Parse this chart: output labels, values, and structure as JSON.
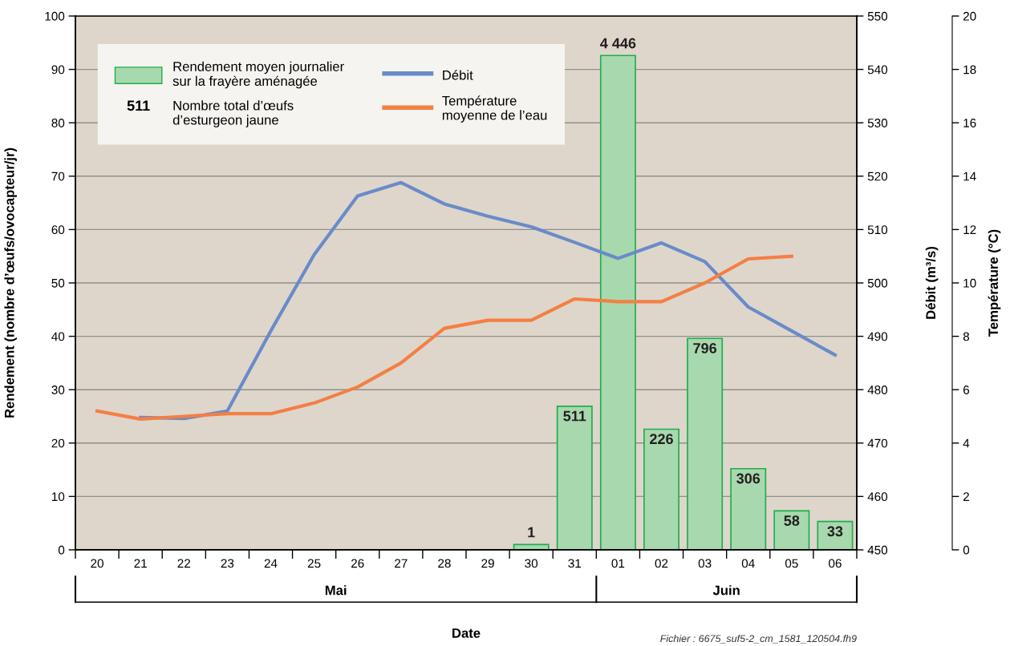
{
  "chart_data": {
    "type": "bar",
    "xlabel": "Date",
    "ylabel": "Rendement (nombre d’œufs/ovocapteur/jr)",
    "y2label": "Débit (m³/s)",
    "y3label": "Température (°C)",
    "categories": [
      "20",
      "21",
      "22",
      "23",
      "24",
      "25",
      "26",
      "27",
      "28",
      "29",
      "30",
      "31",
      "01",
      "02",
      "03",
      "04",
      "05",
      "06"
    ],
    "series": [
      {
        "name": "Rendement moyen journalier\nsur la frayère aménagée",
        "color": "#a8d8ae",
        "values": [
          null,
          null,
          null,
          null,
          null,
          null,
          null,
          null,
          null,
          null,
          1,
          26.9,
          92.6,
          22.6,
          39.6,
          15.2,
          7.3,
          5.3
        ]
      },
      {
        "name": "Débit",
        "type": "line",
        "axis": "y2",
        "color": "#6a8bc9",
        "values": [
          null,
          474.8,
          474.6,
          476,
          491,
          505.3,
          516.3,
          518.8,
          514.8,
          512.5,
          510.5,
          507.6,
          504.6,
          507.5,
          504,
          495.5,
          491,
          486.5
        ]
      },
      {
        "name": "Température\nmoyenne de l’eau",
        "type": "line",
        "axis": "y3",
        "color": "#f47f43",
        "values": [
          5.2,
          4.9,
          5.0,
          5.1,
          5.1,
          5.5,
          6.1,
          7.0,
          8.3,
          8.6,
          8.6,
          9.4,
          9.3,
          9.3,
          10.0,
          10.9,
          11.0,
          null
        ]
      }
    ],
    "ylim": [
      0,
      100
    ],
    "yticks": [
      0,
      10,
      20,
      30,
      40,
      50,
      60,
      70,
      80,
      90,
      100
    ],
    "y2lim": [
      450,
      550
    ],
    "y2ticks": [
      450,
      460,
      470,
      480,
      490,
      500,
      510,
      520,
      530,
      540,
      550
    ],
    "y3lim": [
      0,
      20
    ],
    "y3ticks": [
      0,
      2,
      4,
      6,
      8,
      10,
      12,
      14,
      16,
      18,
      20
    ],
    "grid": "y",
    "legend": "top left",
    "marker": "none",
    "line_style": "solid",
    "annotations": [
      "511",
      "Nombre total d’œufs\nd’esturgeon jaune",
      "Mai",
      "Juin",
      "Fichier : 6675_suf5-2_cm_1581_120504.fh9",
      {
        "text": "1",
        "x": "30",
        "y": 1
      },
      {
        "text": "511",
        "x": "31",
        "y": 26.9
      },
      {
        "text": "4 446",
        "x": "01",
        "y": 92.6
      },
      {
        "text": "226",
        "x": "02",
        "y": 22.6
      },
      {
        "text": "796",
        "x": "03",
        "y": 39.6
      },
      {
        "text": "306",
        "x": "04",
        "y": 15.2
      },
      {
        "text": "58",
        "x": "05",
        "y": 7.3
      },
      {
        "text": "33",
        "x": "06",
        "y": 5.3
      }
    ]
  }
}
